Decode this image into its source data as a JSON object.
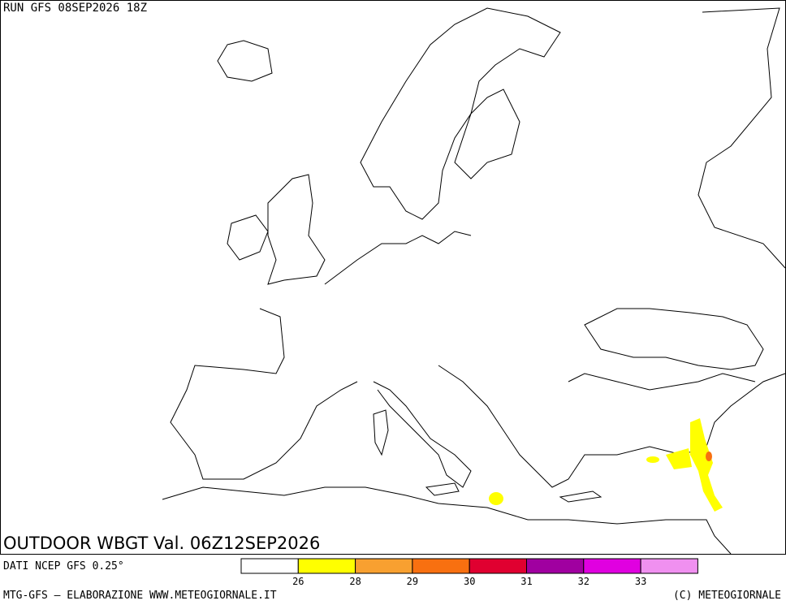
{
  "header": {
    "run": "RUN GFS 08SEP2026 18Z",
    "title": "OUTDOOR WBGT Val. 06Z12SEP2026"
  },
  "legend": {
    "source": "DATI NCEP GFS 0.25°",
    "colors": [
      "#ffffff",
      "#ffff00",
      "#f8a030",
      "#f87010",
      "#e00030",
      "#a000a0",
      "#e000e0",
      "#f090f0"
    ],
    "ticks": [
      26,
      28,
      29,
      30,
      31,
      32,
      33
    ]
  },
  "footer": {
    "left": "MTG-GFS — ELABORAZIONE WWW.METEOGIORNALE.IT",
    "right": "(C) METEOGIORNALE"
  }
}
